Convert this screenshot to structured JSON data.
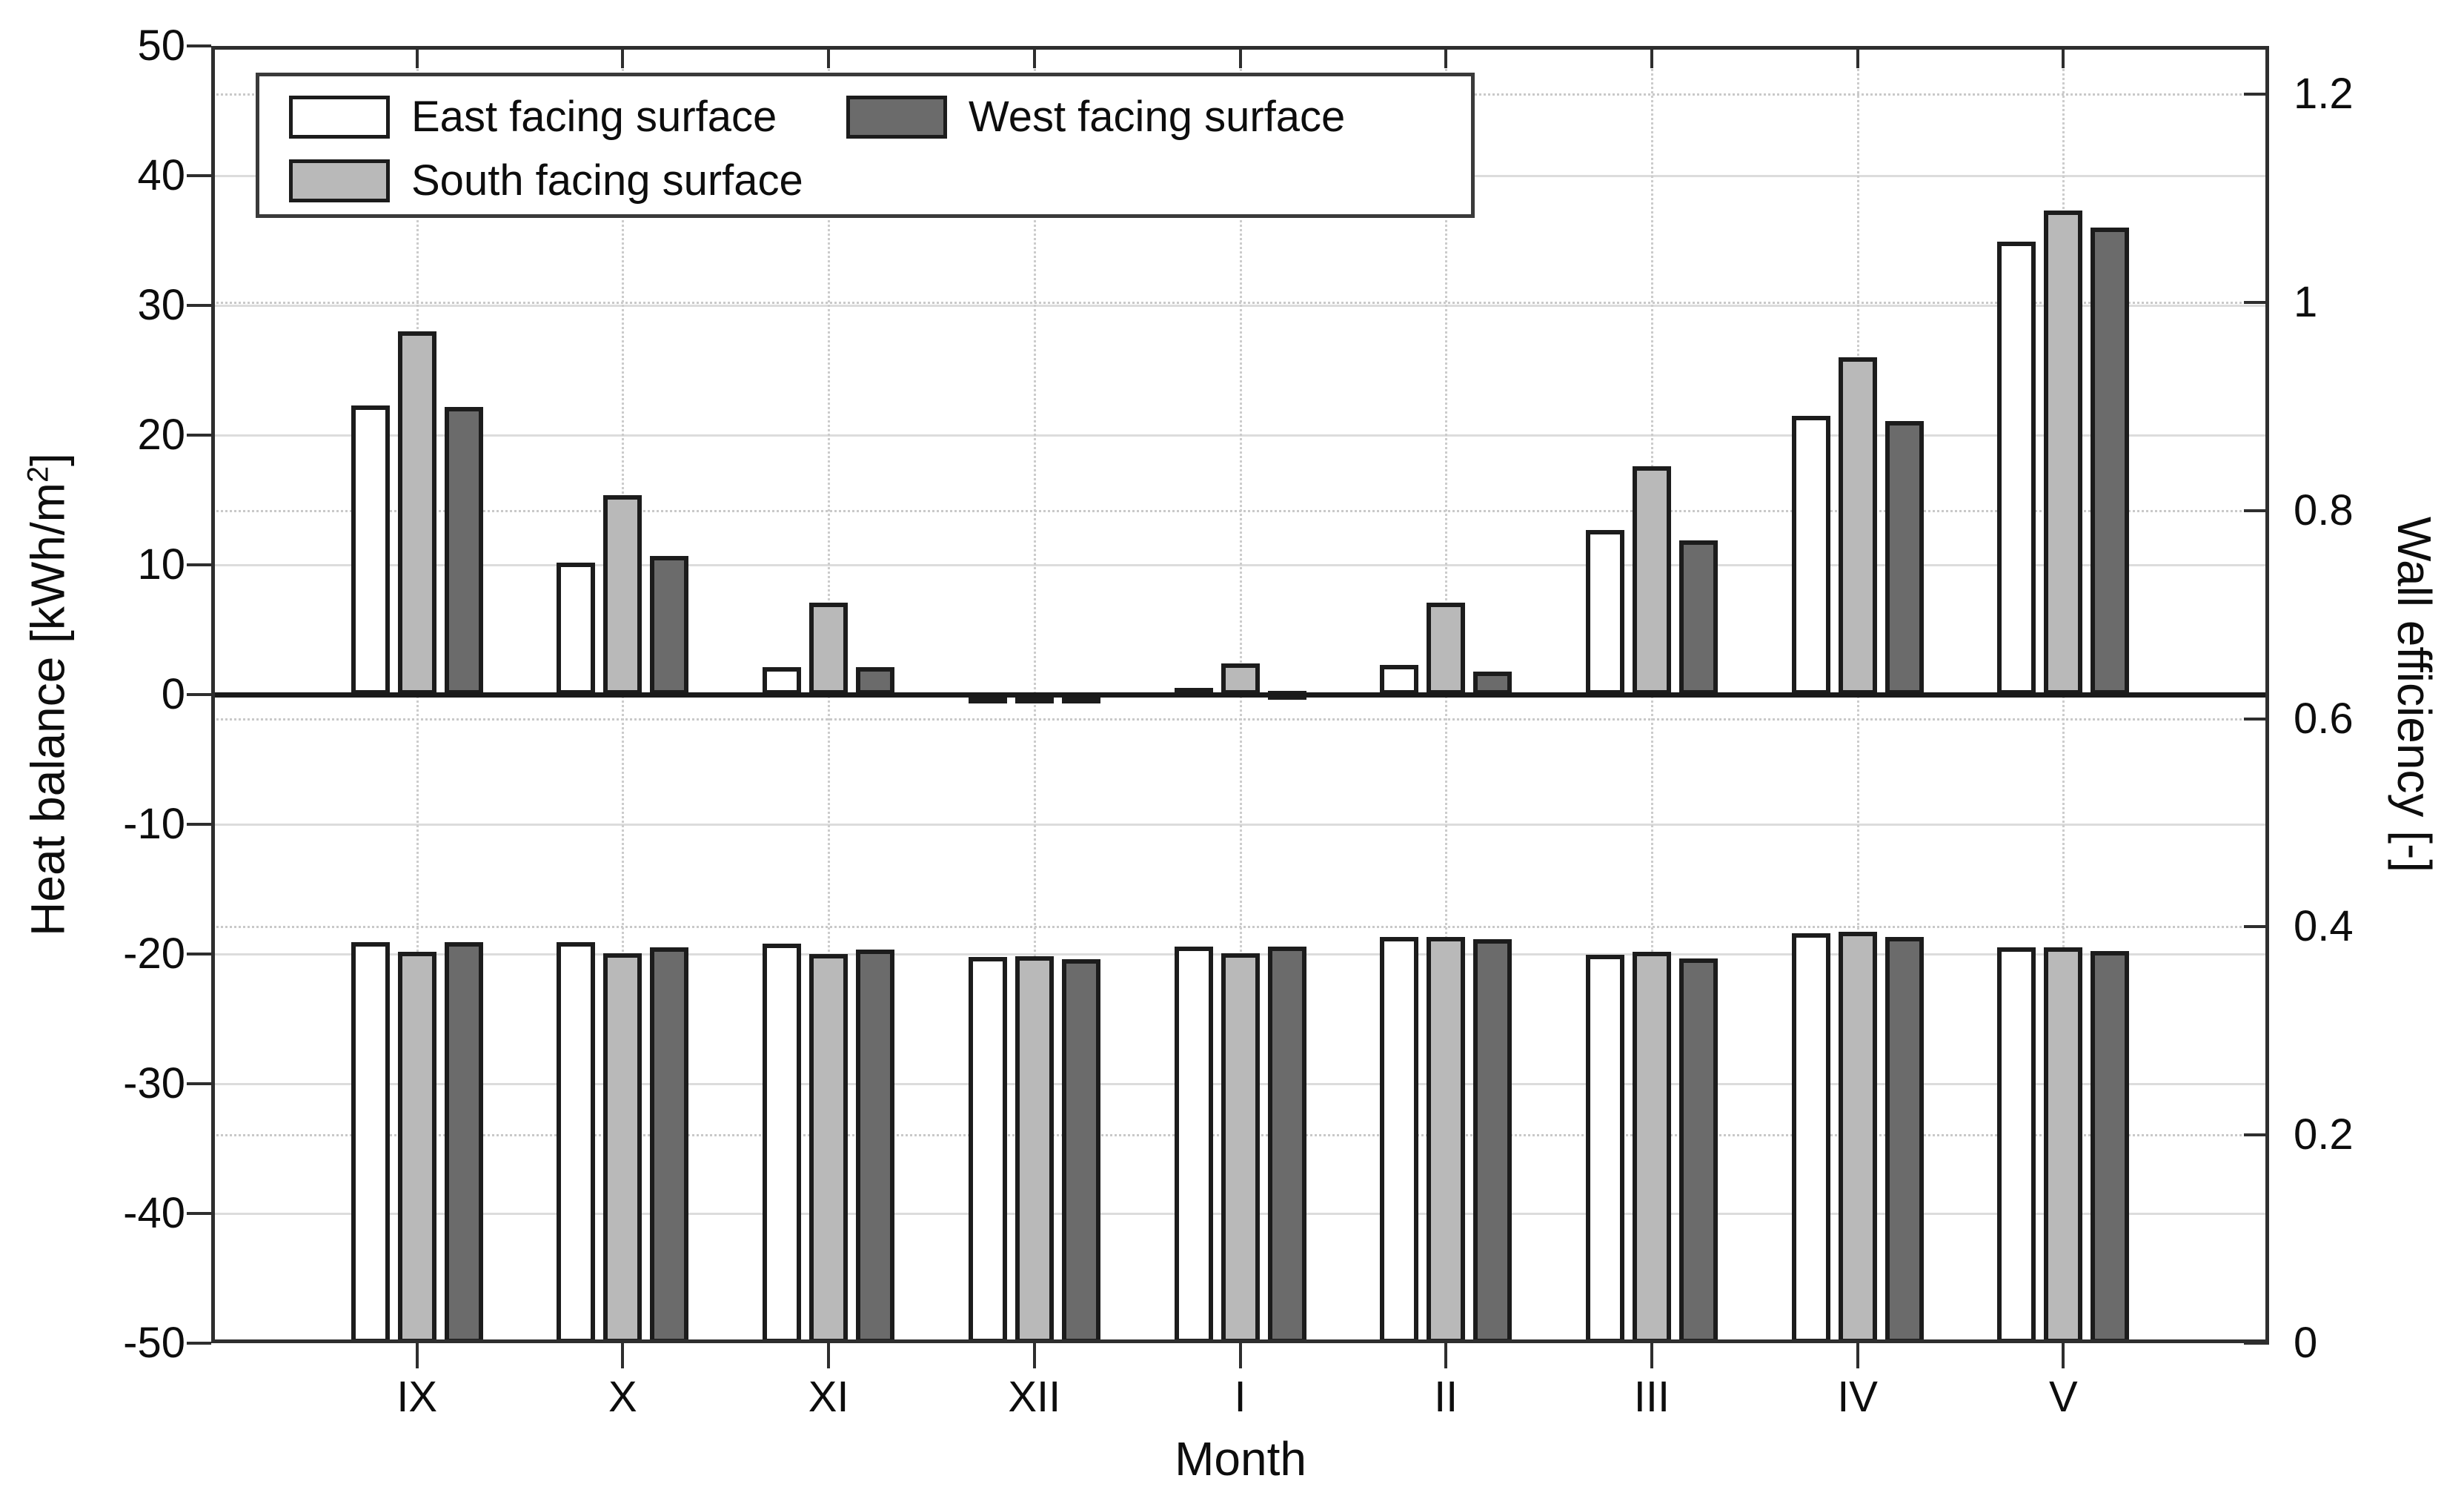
{
  "chart_data": {
    "type": "bar",
    "title": "",
    "xlabel": "Month",
    "ylabel_left": {
      "prefix": "Heat balance [kWh/m",
      "sup": "2",
      "suffix": "]"
    },
    "ylabel_right": "Wall efficiency [-]",
    "categories": [
      "IX",
      "X",
      "XI",
      "XII",
      "I",
      "II",
      "III",
      "IV",
      "V"
    ],
    "left_axis": {
      "min": -50,
      "max": 50,
      "tick_values": [
        50,
        40,
        30,
        20,
        10,
        0,
        -10,
        -20,
        -30,
        -40,
        -50
      ],
      "tick_labels": [
        "50",
        "40",
        "30",
        "20",
        "10",
        "0",
        "-10",
        "-20",
        "-30",
        "-40",
        "-50"
      ]
    },
    "right_axis": {
      "min": 0,
      "tick_values": [
        1.2,
        1.0,
        0.8,
        0.6,
        0.4,
        0.2,
        0
      ],
      "tick_labels": [
        "1.2",
        "1",
        "0.8",
        "0.6",
        "0.4",
        "0.2",
        "0"
      ]
    },
    "series": [
      {
        "name": "East facing surface",
        "color": "#ffffff",
        "heat_balance": [
          22.3,
          10.2,
          2.1,
          -0.5,
          0.5,
          2.3,
          12.7,
          21.5,
          34.9
        ],
        "wall_efficiency": [
          0.385,
          0.385,
          0.384,
          0.371,
          0.381,
          0.39,
          0.373,
          0.394,
          0.38
        ]
      },
      {
        "name": "South facing surface",
        "color": "#b9b9b9",
        "heat_balance": [
          28.0,
          15.4,
          7.1,
          -0.5,
          2.4,
          7.1,
          17.6,
          26.0,
          37.3
        ],
        "wall_efficiency": [
          0.376,
          0.375,
          0.374,
          0.372,
          0.375,
          0.39,
          0.376,
          0.395,
          0.38
        ]
      },
      {
        "name": "West facing surface",
        "color": "#6b6b6b",
        "heat_balance": [
          22.2,
          10.7,
          2.1,
          -0.6,
          0.3,
          1.8,
          11.9,
          21.1,
          36.0
        ],
        "wall_efficiency": [
          0.385,
          0.38,
          0.378,
          0.369,
          0.381,
          0.388,
          0.37,
          0.39,
          0.377
        ]
      }
    ],
    "legend": {
      "position": "top-left",
      "columns": 2
    },
    "grid": {
      "horizontal_solid": "left-axis ticks",
      "horizontal_dotted": "right-axis ticks",
      "vertical_dotted": "category centers"
    },
    "bar_outline_color": "#1c1c1c",
    "background": "#ffffff"
  }
}
